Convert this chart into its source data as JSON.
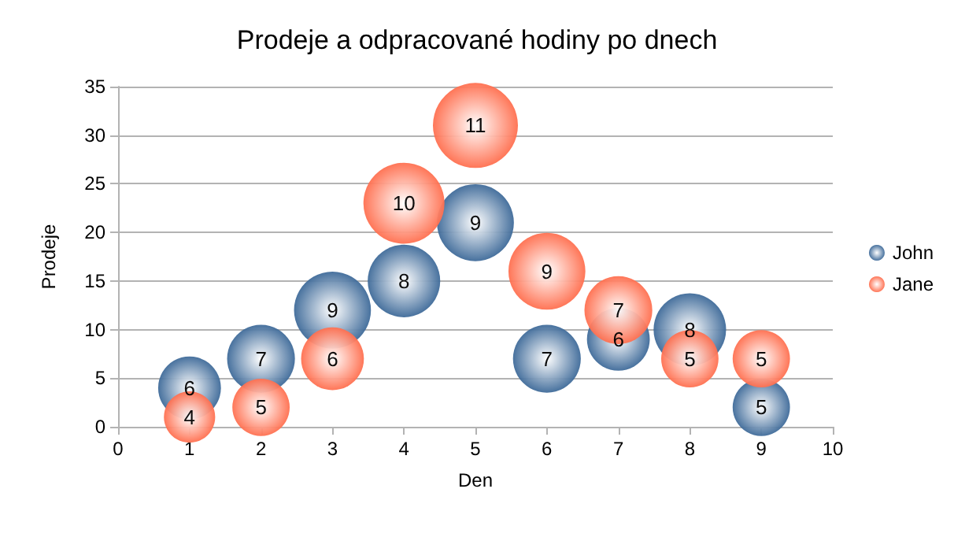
{
  "chart_data": {
    "type": "bubble",
    "title": "Prodeje a odpracované hodiny po dnech",
    "xlabel": "Den",
    "ylabel": "Prodeje",
    "x": [
      1,
      2,
      3,
      4,
      5,
      6,
      7,
      8,
      9
    ],
    "series": [
      {
        "name": "John",
        "color": "#3e6a99",
        "values": [
          4,
          7,
          12,
          15,
          21,
          7,
          9,
          10,
          2
        ],
        "sizes": [
          6,
          7,
          9,
          8,
          9,
          7,
          6,
          8,
          5
        ],
        "value_labels": [
          "6",
          "7",
          "9",
          "8",
          "9",
          "7",
          "6",
          "8",
          "5"
        ]
      },
      {
        "name": "Jane",
        "color": "#ff6f4f",
        "values": [
          1,
          2,
          7,
          23,
          31,
          16,
          12,
          7,
          7
        ],
        "sizes": [
          4,
          5,
          6,
          10,
          11,
          9,
          7,
          5,
          5
        ],
        "value_labels": [
          "4",
          "5",
          "6",
          "10",
          "11",
          "9",
          "7",
          "5",
          "5"
        ]
      }
    ],
    "xlim": [
      0,
      10
    ],
    "xticks": [
      0,
      1,
      2,
      3,
      4,
      5,
      6,
      7,
      8,
      9,
      10
    ],
    "ylim": [
      0,
      35
    ],
    "yticks": [
      0,
      5,
      10,
      15,
      20,
      25,
      30,
      35
    ],
    "grid": "y",
    "legend": "right"
  }
}
